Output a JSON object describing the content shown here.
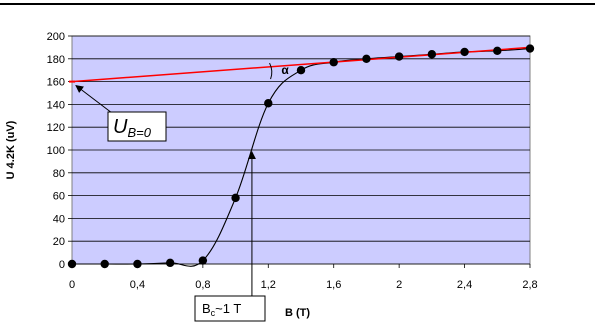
{
  "chart_data": {
    "type": "line",
    "title": "",
    "xlabel": "B (T)",
    "ylabel": "U 4.2K (uV)",
    "xlim": [
      0,
      2.8
    ],
    "ylim": [
      0,
      200
    ],
    "x_ticks": [
      "0",
      "0,4",
      "0,8",
      "1,2",
      "1,6",
      "2",
      "2,4",
      "2,8"
    ],
    "x_tick_values": [
      0,
      0.4,
      0.8,
      1.2,
      1.6,
      2.0,
      2.4,
      2.8
    ],
    "y_ticks": [
      "0",
      "20",
      "40",
      "60",
      "80",
      "100",
      "120",
      "140",
      "160",
      "180",
      "200"
    ],
    "y_tick_values": [
      0,
      20,
      40,
      60,
      80,
      100,
      120,
      140,
      160,
      180,
      200
    ],
    "grid": true,
    "plot_background": "#ccccff",
    "series": [
      {
        "name": "",
        "color": "#000000",
        "marker": "circle",
        "x": [
          0,
          0.2,
          0.4,
          0.6,
          0.8,
          1.0,
          1.2,
          1.4,
          1.6,
          1.8,
          2.0,
          2.2,
          2.4,
          2.6,
          2.8
        ],
        "y": [
          0,
          0,
          0,
          1,
          3,
          58,
          141,
          170,
          177,
          180,
          182,
          184,
          186,
          187,
          189
        ]
      },
      {
        "name": "",
        "color": "#ff0000",
        "marker": "none",
        "x": [
          0,
          2.8
        ],
        "y": [
          160,
          190
        ]
      }
    ],
    "annotations": {
      "alpha": {
        "text": "α",
        "x": 1.28,
        "y": 171
      },
      "ub0": {
        "main": "U",
        "sub": "B=0",
        "target_x": 0,
        "target_y": 160
      },
      "bc": {
        "main": "B",
        "sub": "c",
        "rest": "~1 T",
        "target_x": 1.1,
        "target_y": 100
      }
    }
  }
}
